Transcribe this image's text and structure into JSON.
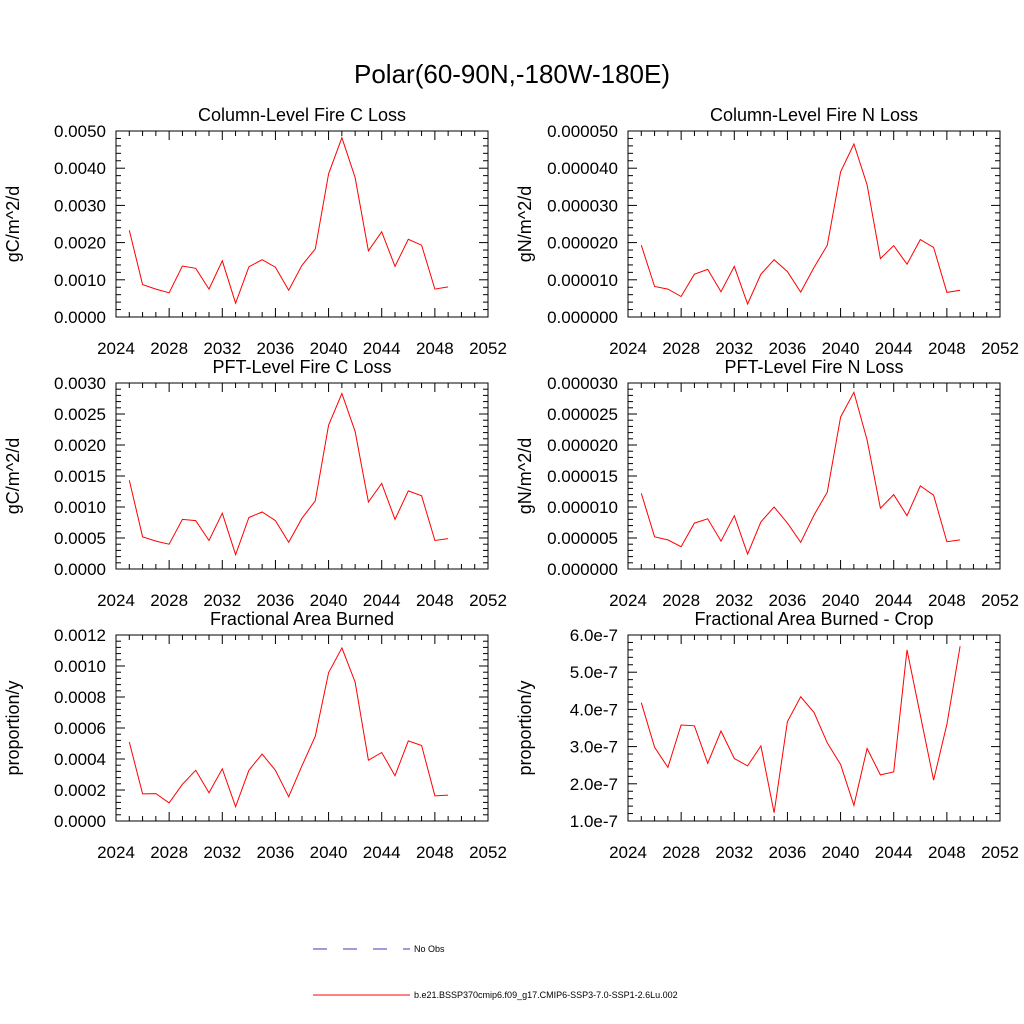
{
  "figure": {
    "title": "Polar(60-90N,-180W-180E)"
  },
  "legend": {
    "entries": [
      {
        "label": "No Obs",
        "style": "dashed",
        "color": "#3b3bb0"
      },
      {
        "label": "b.e21.BSSP370cmip6.f09_g17.CMIP6-SSP3-7.0-SSP1-2.6Lu.002",
        "style": "solid",
        "color": "#ff0000"
      }
    ]
  },
  "chart_data": [
    {
      "type": "line",
      "title": "Column-Level Fire C Loss",
      "ylabel": "gC/m^2/d",
      "xlim": [
        2024,
        2052
      ],
      "xticks": [
        "2024",
        "2028",
        "2032",
        "2036",
        "2040",
        "2044",
        "2048",
        "2052"
      ],
      "ylim": [
        0,
        0.005
      ],
      "yticks": [
        "0.0000",
        "0.0010",
        "0.0020",
        "0.0030",
        "0.0040",
        "0.0050"
      ],
      "grid": false,
      "series": [
        {
          "color": "#ff0000",
          "x": [
            2025,
            2026,
            2027,
            2028,
            2029,
            2030,
            2031,
            2032,
            2033,
            2034,
            2035,
            2036,
            2037,
            2038,
            2039,
            2040,
            2041,
            2042,
            2043,
            2044,
            2045,
            2046,
            2047,
            2048,
            2049
          ],
          "y": [
            0.00233,
            0.00087,
            0.00075,
            0.00065,
            0.00137,
            0.00131,
            0.00075,
            0.00151,
            0.00037,
            0.00135,
            0.00154,
            0.00134,
            0.00072,
            0.00139,
            0.00183,
            0.00385,
            0.00482,
            0.00375,
            0.00178,
            0.00229,
            0.00136,
            0.00209,
            0.00193,
            0.00075,
            0.00081
          ]
        }
      ]
    },
    {
      "type": "line",
      "title": "Column-Level Fire N Loss",
      "ylabel": "gN/m^2/d",
      "xlim": [
        2024,
        2052
      ],
      "xticks": [
        "2024",
        "2028",
        "2032",
        "2036",
        "2040",
        "2044",
        "2048",
        "2052"
      ],
      "ylim": [
        0,
        5e-05
      ],
      "yticks": [
        "0.000000",
        "0.000010",
        "0.000020",
        "0.000030",
        "0.000040",
        "0.000050"
      ],
      "grid": false,
      "series": [
        {
          "color": "#ff0000",
          "x": [
            2025,
            2026,
            2027,
            2028,
            2029,
            2030,
            2031,
            2032,
            2033,
            2034,
            2035,
            2036,
            2037,
            2038,
            2039,
            2040,
            2041,
            2042,
            2043,
            2044,
            2045,
            2046,
            2047,
            2048,
            2049
          ],
          "y": [
            1.93e-05,
            8.2e-06,
            7.5e-06,
            5.5e-06,
            1.15e-05,
            1.28e-05,
            6.8e-06,
            1.36e-05,
            3.5e-06,
            1.15e-05,
            1.54e-05,
            1.22e-05,
            6.7e-06,
            1.33e-05,
            1.93e-05,
            3.9e-05,
            4.65e-05,
            3.55e-05,
            1.57e-05,
            1.92e-05,
            1.42e-05,
            2.08e-05,
            1.87e-05,
            6.6e-06,
            7.2e-06
          ]
        }
      ]
    },
    {
      "type": "line",
      "title": "PFT-Level Fire C Loss",
      "ylabel": "gC/m^2/d",
      "xlim": [
        2024,
        2052
      ],
      "xticks": [
        "2024",
        "2028",
        "2032",
        "2036",
        "2040",
        "2044",
        "2048",
        "2052"
      ],
      "ylim": [
        0,
        0.003
      ],
      "yticks": [
        "0.0000",
        "0.0005",
        "0.0010",
        "0.0015",
        "0.0020",
        "0.0025",
        "0.0030"
      ],
      "grid": false,
      "series": [
        {
          "color": "#ff0000",
          "x": [
            2025,
            2026,
            2027,
            2028,
            2029,
            2030,
            2031,
            2032,
            2033,
            2034,
            2035,
            2036,
            2037,
            2038,
            2039,
            2040,
            2041,
            2042,
            2043,
            2044,
            2045,
            2046,
            2047,
            2048,
            2049
          ],
          "y": [
            0.00143,
            0.00052,
            0.00045,
            0.0004,
            0.0008,
            0.00078,
            0.00046,
            0.0009,
            0.00023,
            0.00083,
            0.00092,
            0.00078,
            0.00043,
            0.00082,
            0.0011,
            0.00232,
            0.00283,
            0.00222,
            0.00108,
            0.00138,
            0.0008,
            0.00126,
            0.00118,
            0.00046,
            0.00049
          ]
        }
      ]
    },
    {
      "type": "line",
      "title": "PFT-Level Fire N Loss",
      "ylabel": "gN/m^2/d",
      "xlim": [
        2024,
        2052
      ],
      "xticks": [
        "2024",
        "2028",
        "2032",
        "2036",
        "2040",
        "2044",
        "2048",
        "2052"
      ],
      "ylim": [
        0,
        3e-05
      ],
      "yticks": [
        "0.000000",
        "0.000005",
        "0.000010",
        "0.000015",
        "0.000020",
        "0.000025",
        "0.000030"
      ],
      "grid": false,
      "series": [
        {
          "color": "#ff0000",
          "x": [
            2025,
            2026,
            2027,
            2028,
            2029,
            2030,
            2031,
            2032,
            2033,
            2034,
            2035,
            2036,
            2037,
            2038,
            2039,
            2040,
            2041,
            2042,
            2043,
            2044,
            2045,
            2046,
            2047,
            2048,
            2049
          ],
          "y": [
            1.22e-05,
            5.2e-06,
            4.7e-06,
            3.6e-06,
            7.4e-06,
            8.1e-06,
            4.5e-06,
            8.6e-06,
            2.4e-06,
            7.6e-06,
            1e-05,
            7.4e-06,
            4.3e-06,
            8.7e-06,
            1.24e-05,
            2.45e-05,
            2.85e-05,
            2.08e-05,
            9.8e-06,
            1.2e-05,
            8.6e-06,
            1.34e-05,
            1.19e-05,
            4.4e-06,
            4.7e-06
          ]
        }
      ]
    },
    {
      "type": "line",
      "title": "Fractional Area Burned",
      "ylabel": "proportion/y",
      "xlim": [
        2024,
        2052
      ],
      "xticks": [
        "2024",
        "2028",
        "2032",
        "2036",
        "2040",
        "2044",
        "2048",
        "2052"
      ],
      "ylim": [
        0,
        0.0012
      ],
      "yticks": [
        "0.0000",
        "0.0002",
        "0.0004",
        "0.0006",
        "0.0008",
        "0.0010",
        "0.0012"
      ],
      "grid": false,
      "series": [
        {
          "color": "#ff0000",
          "x": [
            2025,
            2026,
            2027,
            2028,
            2029,
            2030,
            2031,
            2032,
            2033,
            2034,
            2035,
            2036,
            2037,
            2038,
            2039,
            2040,
            2041,
            2042,
            2043,
            2044,
            2045,
            2046,
            2047,
            2048,
            2049
          ],
          "y": [
            0.00051,
            0.000175,
            0.000177,
            0.000117,
            0.000237,
            0.000327,
            0.000182,
            0.000337,
            9.2e-05,
            0.000327,
            0.000432,
            0.000327,
            0.000157,
            0.000357,
            0.000547,
            0.000957,
            0.001117,
            0.000897,
            0.000392,
            0.000442,
            0.000292,
            0.000517,
            0.000487,
            0.000162,
            0.000167
          ]
        }
      ]
    },
    {
      "type": "line",
      "title": "Fractional Area Burned - Crop",
      "ylabel": "proportion/y",
      "xlim": [
        2024,
        2052
      ],
      "xticks": [
        "2024",
        "2028",
        "2032",
        "2036",
        "2040",
        "2044",
        "2048",
        "2052"
      ],
      "ylim": [
        1e-07,
        6e-07
      ],
      "yticks": [
        "1.0e-7",
        "2.0e-7",
        "3.0e-7",
        "4.0e-7",
        "5.0e-7",
        "6.0e-7"
      ],
      "grid": false,
      "series": [
        {
          "color": "#ff0000",
          "x": [
            2025,
            2026,
            2027,
            2028,
            2029,
            2030,
            2031,
            2032,
            2033,
            2034,
            2035,
            2036,
            2037,
            2038,
            2039,
            2040,
            2041,
            2042,
            2043,
            2044,
            2045,
            2046,
            2047,
            2048,
            2049
          ],
          "y": [
            4.18e-07,
            2.98e-07,
            2.44e-07,
            3.58e-07,
            3.56e-07,
            2.55e-07,
            3.42e-07,
            2.68e-07,
            2.48e-07,
            3.02e-07,
            1.22e-07,
            3.67e-07,
            4.34e-07,
            3.92e-07,
            3.1e-07,
            2.52e-07,
            1.42e-07,
            2.95e-07,
            2.24e-07,
            2.32e-07,
            5.6e-07,
            3.85e-07,
            2.1e-07,
            3.6e-07,
            5.7e-07
          ]
        }
      ]
    }
  ]
}
